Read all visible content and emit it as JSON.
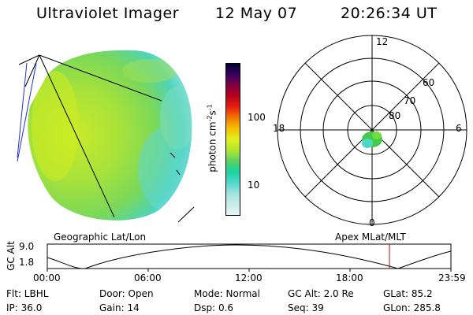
{
  "header": {
    "instrument": "Ultraviolet Imager",
    "date": "12 May 07",
    "time": "20:26:34 UT"
  },
  "colorbar": {
    "unit_text": "photon cm",
    "unit_exp1": "-2",
    "unit_mid": "s",
    "unit_exp2": "-1",
    "ticks": [
      "100",
      "10"
    ],
    "stops": [
      "#e8f6fa",
      "#c8ece8",
      "#9fe3e0",
      "#50d8cc",
      "#19d3a0",
      "#5cd060",
      "#b0e630",
      "#e4f020",
      "#f5c000",
      "#f07800",
      "#e82010",
      "#b8001a",
      "#800040",
      "#3a0060",
      "#000030"
    ]
  },
  "polar": {
    "mlt_labels": [
      "12",
      "18",
      "6",
      "0"
    ],
    "lat_labels": [
      "60",
      "70",
      "80"
    ]
  },
  "timeline": {
    "y_axis_label": "GC Alt",
    "y_ticks": [
      "9.0",
      "1.8"
    ],
    "left_title": "Geographic Lat/Lon",
    "right_title": "Apex MLat/MLT",
    "x_ticks": [
      "00:00",
      "06:00",
      "12:00",
      "18:00",
      "23:59"
    ]
  },
  "footer": {
    "row1": [
      "Flt: LBHL",
      "Door: Open",
      "Mode: Normal",
      "GC Alt: 2.0 Re",
      "GLat: 85.2"
    ],
    "row2": [
      "IP: 36.0",
      "Gain: 14",
      "Dsp: 0.6",
      "Seq: 39",
      "GLon: 285.8"
    ]
  },
  "colors": {
    "image_fill": "#a8e23a",
    "image_edge": "#4fd8c8",
    "marker": "#cc0000"
  }
}
